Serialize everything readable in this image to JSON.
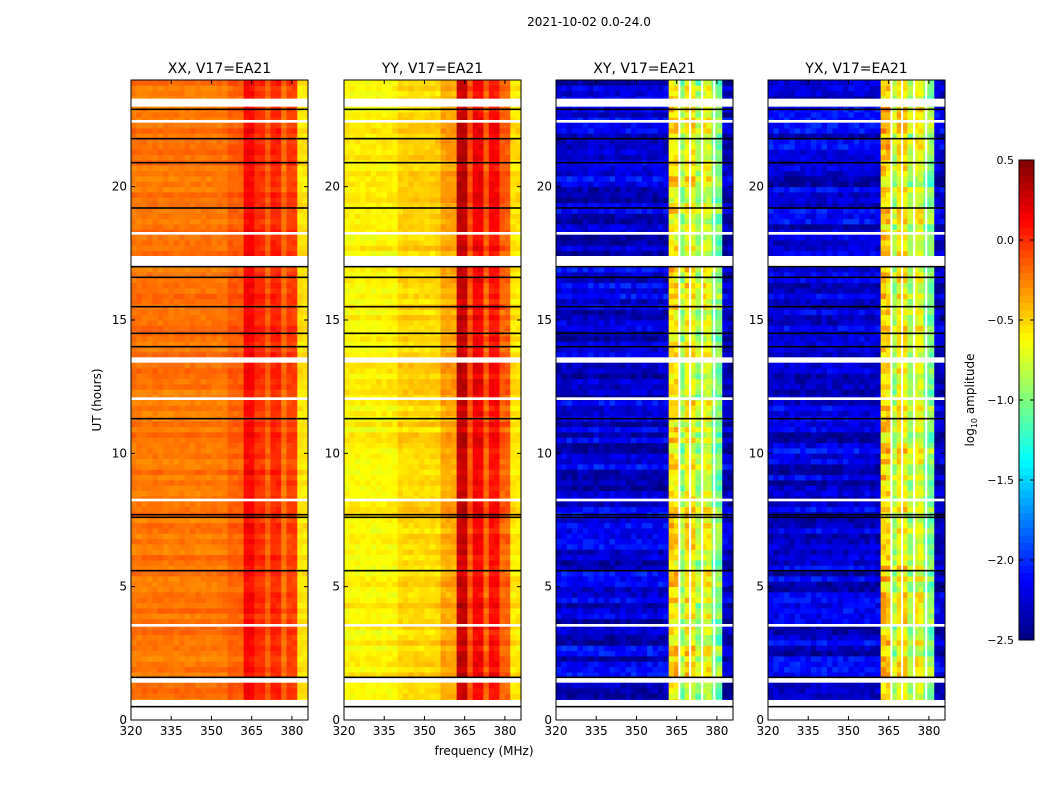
{
  "chart_data": {
    "type": "heatmap",
    "title": "2021-10-02 0.0-24.0",
    "ylabel": "UT (hours)",
    "xlabel": "frequency (MHz)",
    "xlim": [
      320,
      386
    ],
    "ylim": [
      0,
      24
    ],
    "xticks": [
      320,
      335,
      350,
      365,
      380
    ],
    "yticks": [
      0,
      5,
      10,
      15,
      20
    ],
    "colorbar": {
      "label": "log10 amplitude",
      "label_main": "log",
      "label_sub": "10",
      "label_rest": " amplitude",
      "range": [
        -2.5,
        0.5
      ],
      "ticks": [
        "0.5",
        "0.0",
        "−0.5",
        "−1.0",
        "−1.5",
        "−2.0",
        "−2.5"
      ],
      "tick_values": [
        0.5,
        0.0,
        -0.5,
        -1.0,
        -1.5,
        -2.0,
        -2.5
      ],
      "colormap": "jet"
    },
    "time_bin_hours": 0.2,
    "freq_bin_mhz": 2,
    "flagged_hours": [
      [
        0.5,
        0.75
      ],
      [
        1.4,
        1.6
      ],
      [
        3.5,
        3.6
      ],
      [
        8.2,
        8.3
      ],
      [
        12.0,
        12.1
      ],
      [
        13.4,
        13.6
      ],
      [
        17.0,
        17.4
      ],
      [
        18.2,
        18.3
      ],
      [
        22.4,
        22.5
      ],
      [
        23.0,
        23.3
      ]
    ],
    "black_line_hours": [
      0.5,
      1.6,
      5.6,
      7.6,
      7.7,
      11.3,
      14.0,
      14.5,
      15.5,
      16.6,
      17.0,
      19.2,
      20.9,
      21.8,
      22.9
    ],
    "panels": [
      {
        "name": "XX, V17=EA21",
        "noise": 0.08,
        "profile": [
          [
            320,
            356,
            -0.22
          ],
          [
            356,
            362,
            -0.15
          ],
          [
            362,
            366,
            0.12
          ],
          [
            366,
            370,
            0.0
          ],
          [
            370,
            372,
            -0.15
          ],
          [
            372,
            376,
            0.02
          ],
          [
            376,
            378,
            -0.2
          ],
          [
            378,
            382,
            -0.05
          ],
          [
            382,
            386,
            -0.55
          ]
        ]
      },
      {
        "name": "YY, V17=EA21",
        "noise": 0.1,
        "profile": [
          [
            320,
            340,
            -0.6
          ],
          [
            340,
            356,
            -0.5
          ],
          [
            356,
            362,
            -0.35
          ],
          [
            362,
            366,
            0.3
          ],
          [
            366,
            368,
            -0.1
          ],
          [
            368,
            372,
            0.15
          ],
          [
            372,
            374,
            -0.15
          ],
          [
            374,
            378,
            0.1
          ],
          [
            378,
            382,
            -0.15
          ],
          [
            382,
            386,
            -0.55
          ]
        ]
      },
      {
        "name": "XY, V17=EA21",
        "noise": 0.25,
        "profile": [
          [
            320,
            362,
            -2.25
          ],
          [
            362,
            366,
            -0.55
          ],
          [
            366,
            368,
            -0.9
          ],
          [
            368,
            372,
            -0.6
          ],
          [
            372,
            374,
            -0.9
          ],
          [
            374,
            378,
            -0.7
          ],
          [
            378,
            382,
            -1.0
          ],
          [
            382,
            386,
            -2.3
          ]
        ]
      },
      {
        "name": "YX, V17=EA21",
        "noise": 0.25,
        "profile": [
          [
            320,
            362,
            -2.25
          ],
          [
            362,
            366,
            -0.5
          ],
          [
            366,
            368,
            -0.9
          ],
          [
            368,
            372,
            -0.6
          ],
          [
            372,
            374,
            -0.9
          ],
          [
            374,
            378,
            -0.7
          ],
          [
            378,
            382,
            -1.0
          ],
          [
            382,
            386,
            -2.3
          ]
        ]
      }
    ],
    "flagged_channels_mhz": [
      366,
      370,
      374.5,
      379
    ],
    "colors": {
      "flagged": "#ffffff",
      "frame": "#000000"
    }
  }
}
